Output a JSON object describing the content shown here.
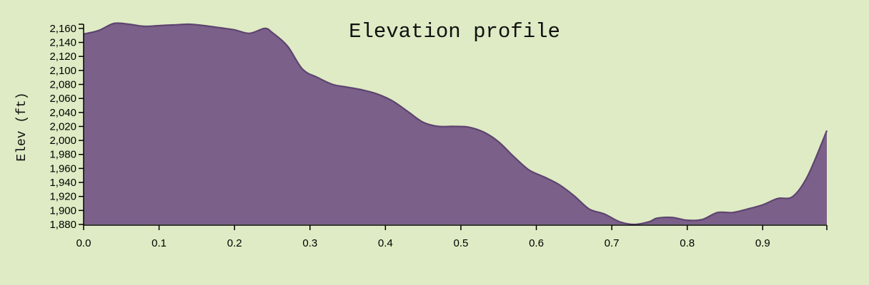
{
  "chart_data": {
    "type": "area",
    "title": "Elevation profile",
    "xlabel": "",
    "ylabel": "Elev (ft)",
    "xlim": [
      0,
      0.985
    ],
    "ylim": [
      1880,
      2166
    ],
    "x_ticks": [
      0.0,
      0.1,
      0.2,
      0.3,
      0.4,
      0.5,
      0.6,
      0.7,
      0.8,
      0.9
    ],
    "x_tick_labels": [
      "0.0",
      "0.1",
      "0.2",
      "0.3",
      "0.4",
      "0.5",
      "0.6",
      "0.7",
      "0.8",
      "0.9"
    ],
    "y_ticks": [
      1880,
      1900,
      1920,
      1940,
      1960,
      1980,
      2000,
      2020,
      2040,
      2060,
      2080,
      2100,
      2120,
      2140,
      2160
    ],
    "y_tick_labels": [
      "1,880",
      "1,900",
      "1,920",
      "1,940",
      "1,960",
      "1,980",
      "2,000",
      "2,020",
      "2,040",
      "2,060",
      "2,080",
      "2,100",
      "2,120",
      "2,140",
      "2,160"
    ],
    "grid": false,
    "fill_color": "#7b6189",
    "line_color": "#5e4470",
    "background_color": "#deebc4",
    "series": [
      {
        "x": [
          0.0,
          0.02,
          0.04,
          0.06,
          0.08,
          0.1,
          0.12,
          0.14,
          0.16,
          0.18,
          0.2,
          0.22,
          0.24,
          0.25,
          0.27,
          0.29,
          0.31,
          0.33,
          0.35,
          0.37,
          0.39,
          0.41,
          0.43,
          0.45,
          0.47,
          0.49,
          0.51,
          0.53,
          0.55,
          0.57,
          0.59,
          0.61,
          0.63,
          0.65,
          0.67,
          0.69,
          0.71,
          0.73,
          0.75,
          0.76,
          0.78,
          0.8,
          0.82,
          0.84,
          0.86,
          0.88,
          0.9,
          0.92,
          0.94,
          0.96,
          0.985
        ],
        "y": [
          2152,
          2157,
          2167,
          2166,
          2163,
          2164,
          2165,
          2166,
          2164,
          2161,
          2158,
          2153,
          2160,
          2154,
          2135,
          2102,
          2090,
          2080,
          2076,
          2072,
          2066,
          2056,
          2041,
          2026,
          2020,
          2020,
          2019,
          2012,
          1998,
          1977,
          1958,
          1948,
          1937,
          1921,
          1902,
          1895,
          1884,
          1880,
          1884,
          1889,
          1890,
          1886,
          1887,
          1897,
          1897,
          1902,
          1908,
          1917,
          1920,
          1950,
          2014
        ]
      }
    ]
  }
}
